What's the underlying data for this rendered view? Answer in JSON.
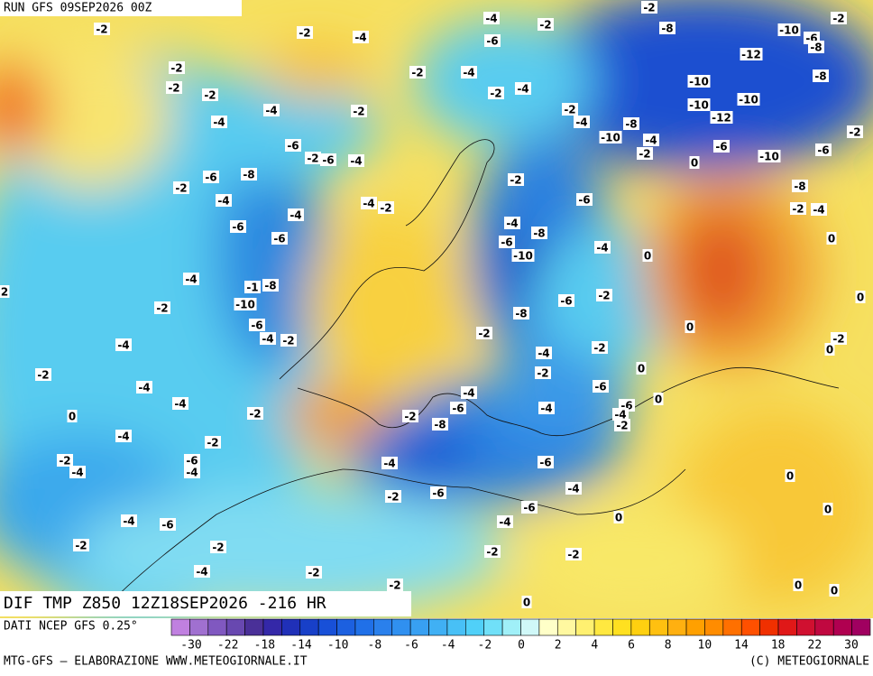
{
  "header": {
    "run": "RUN GFS 09SEP2026 00Z"
  },
  "map": {
    "contour_labels": [
      "-2",
      "-4",
      "-2",
      "-2",
      "-8",
      "-2",
      "-10",
      "-6",
      "-8",
      "-2",
      "-4",
      "-6",
      "-2",
      "-2",
      "-4",
      "-12",
      "-8",
      "-2",
      "-2",
      "-2",
      "-4",
      "-10",
      "-10",
      "-10",
      "-4",
      "-2",
      "-2",
      "-4",
      "-8",
      "-12",
      "-4",
      "-2",
      "-10",
      "-4",
      "-6",
      "-6",
      "-6",
      "-2",
      "-6",
      "-4",
      "-2",
      "0",
      "-10",
      "-8",
      "-6",
      "-2",
      "-2",
      "-8",
      "-4",
      "-6",
      "-4",
      "-2",
      "-4",
      "-4",
      "-2",
      "-4",
      "-6",
      "-8",
      "-6",
      "-6",
      "-4",
      "0",
      "0",
      "-10",
      "-4",
      "-1",
      "-8",
      "-2",
      "-6",
      "-10",
      "-2",
      "-8",
      "0",
      "-6",
      "0",
      "-4",
      "-2",
      "-2",
      "-4",
      "-2",
      "0",
      "-2",
      "-4",
      "0",
      "-2",
      "-2",
      "-4",
      "-4",
      "-6",
      "0",
      "-4",
      "-6",
      "-6",
      "-4",
      "-4",
      "-2",
      "0",
      "-2",
      "-2",
      "-8",
      "-4",
      "-2",
      "-2",
      "-6",
      "-4",
      "-4",
      "-4",
      "-6",
      "0",
      "-4",
      "-2",
      "-6",
      "-6",
      "0",
      "-4",
      "-6",
      "-4",
      "0",
      "-2",
      "-2",
      "-2",
      "-2",
      "-4",
      "-2",
      "-2",
      "0",
      "0",
      "0",
      "2"
    ]
  },
  "footer": {
    "field": "DIF TMP Z850 12Z18SEP2026 -216 HR",
    "source": "DATI NCEP GFS 0.25°",
    "credit_left": "MTG-GFS — ELABORAZIONE WWW.METEOGIORNALE.IT",
    "credit_right": "(C) METEOGIORNALE"
  },
  "colorbar": {
    "colors": [
      "#c080e0",
      "#a070d0",
      "#8058c0",
      "#6848b0",
      "#4a3098",
      "#3428a8",
      "#2030b8",
      "#1840c8",
      "#1850d8",
      "#1c60e0",
      "#2070e8",
      "#2a80ec",
      "#3090f0",
      "#38a0f2",
      "#40b0f4",
      "#48c0f6",
      "#50d0f8",
      "#70e0f8",
      "#a0f0f8",
      "#d0f8f8",
      "#ffffc8",
      "#fff8a0",
      "#fff070",
      "#ffe840",
      "#ffe020",
      "#ffd010",
      "#ffc010",
      "#ffb010",
      "#ffa000",
      "#ff8c00",
      "#ff7000",
      "#ff5000",
      "#f03000",
      "#e01818",
      "#d01030",
      "#c00840",
      "#b00050",
      "#a00060"
    ],
    "ticks": [
      -30,
      -22,
      -18,
      -14,
      -10,
      -8,
      -6,
      -4,
      -2,
      0,
      2,
      4,
      6,
      8,
      10,
      14,
      18,
      22,
      30
    ]
  }
}
